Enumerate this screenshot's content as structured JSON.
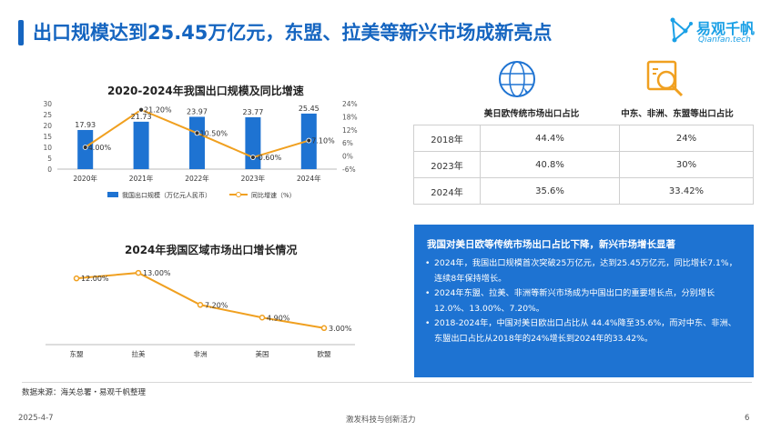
{
  "header": {
    "title": "出口规模达到25.45万亿元，东盟、拉美等新兴市场成新亮点"
  },
  "logo": {
    "name": "易观千帆",
    "sub": "Qianfan.tech"
  },
  "table": {
    "col1_header": "美日欧传统市场出口占比",
    "col2_header": "中东、非洲、东盟等出口占比",
    "rows": [
      {
        "year": "2018年",
        "v1": "44.4%",
        "v2": "24%"
      },
      {
        "year": "2023年",
        "v1": "40.8%",
        "v2": "30%"
      },
      {
        "year": "2024年",
        "v1": "35.6%",
        "v2": "33.42%"
      }
    ]
  },
  "summary": {
    "title": "我国对美日欧等传统市场出口占比下降，新兴市场增长显著",
    "bullets": [
      "2024年，我国出口规模首次突破25万亿元，达到25.45万亿元，同比增长7.1%，连续8年保持增长。",
      "2024年东盟、拉美、非洲等新兴市场成为中国出口的重要增长点，分别增长12.0%、13.00%、7.20%。",
      "2018-2024年，中国对美日欧出口占比从 44.4%降至35.6%，而对中东、非洲、东盟出口占比从2018年的24%增长到2024年的33.42%。"
    ]
  },
  "source": "数据来源：海关总署・易观千帆整理",
  "footer": {
    "date": "2025-4-7",
    "slogan": "激发科技与创新活力",
    "page": "6"
  },
  "colors": {
    "bar": "#1e73d2",
    "line": "#f0a020",
    "title": "#1565c0"
  },
  "chart_data": [
    {
      "type": "bar",
      "title": "2020-2024年我国出口规模及同比增速",
      "categories": [
        "2020年",
        "2021年",
        "2022年",
        "2023年",
        "2024年"
      ],
      "bar_series": {
        "name": "我国出口规模（万亿元人民币）",
        "values": [
          17.93,
          21.73,
          23.97,
          23.77,
          25.45
        ],
        "labels": [
          "17.93",
          "21.73",
          "23.97",
          "23.77",
          "25.45"
        ]
      },
      "line_series": {
        "name": "同比增速（%）",
        "values": [
          4.0,
          21.2,
          10.5,
          -0.6,
          7.1
        ],
        "labels": [
          "4.00%",
          "21.20%",
          "10.50%",
          "-0.60%",
          "7.10%"
        ]
      },
      "ylim_left": [
        0,
        30
      ],
      "yticks_left": [
        "0",
        "5",
        "10",
        "15",
        "20",
        "25",
        "30"
      ],
      "ylim_right": [
        -6,
        24
      ],
      "yticks_right": [
        "-6%",
        "0%",
        "6%",
        "12%",
        "18%",
        "24%"
      ],
      "legend_position": "bottom",
      "grid": false
    },
    {
      "type": "line",
      "title": "2024年我国区域市场出口增长情况",
      "categories": [
        "东盟",
        "拉美",
        "非洲",
        "美国",
        "欧盟"
      ],
      "values": [
        12.0,
        13.0,
        7.2,
        4.9,
        3.0
      ],
      "labels": [
        "12.00%",
        "13.00%",
        "7.20%",
        "4.90%",
        "3.00%"
      ],
      "grid": false
    }
  ]
}
